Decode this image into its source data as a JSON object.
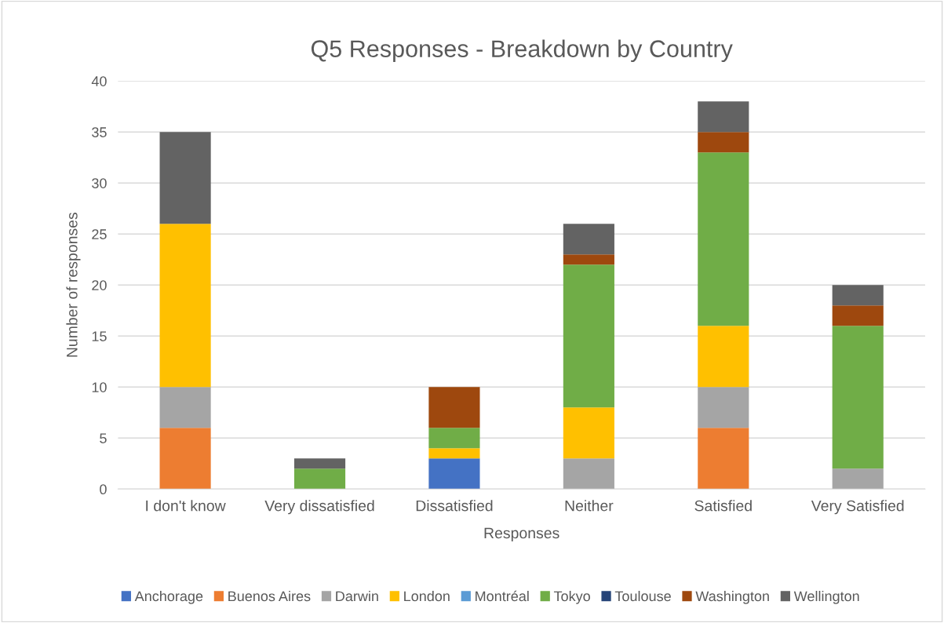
{
  "chart_data": {
    "type": "bar",
    "stacked": true,
    "title": "Q5 Responses - Breakdown by Country",
    "xlabel": "Responses",
    "ylabel": "Number of responses",
    "categories": [
      "I don't know",
      "Very dissatisfied",
      "Dissatisfied",
      "Neither",
      "Satisfied",
      "Very Satisfied"
    ],
    "series": [
      {
        "name": "Anchorage",
        "color": "#4472c4",
        "values": [
          0,
          0,
          3,
          0,
          0,
          0
        ]
      },
      {
        "name": "Buenos Aires",
        "color": "#ed7d31",
        "values": [
          6,
          0,
          0,
          0,
          6,
          0
        ]
      },
      {
        "name": "Darwin",
        "color": "#a5a5a5",
        "values": [
          4,
          0,
          0,
          3,
          4,
          2
        ]
      },
      {
        "name": "London",
        "color": "#ffc000",
        "values": [
          16,
          0,
          1,
          5,
          6,
          0
        ]
      },
      {
        "name": "Montréal",
        "color": "#5b9bd5",
        "values": [
          0,
          0,
          0,
          0,
          0,
          0
        ]
      },
      {
        "name": "Tokyo",
        "color": "#70ad47",
        "values": [
          0,
          2,
          2,
          14,
          17,
          14
        ]
      },
      {
        "name": "Toulouse",
        "color": "#264478",
        "values": [
          0,
          0,
          0,
          0,
          0,
          0
        ]
      },
      {
        "name": "Washington",
        "color": "#9e480e",
        "values": [
          0,
          0,
          4,
          1,
          2,
          2
        ]
      },
      {
        "name": "Wellington",
        "color": "#636363",
        "values": [
          9,
          1,
          0,
          3,
          3,
          2
        ]
      }
    ],
    "ylim": [
      0,
      40
    ],
    "yticks": [
      0,
      5,
      10,
      15,
      20,
      25,
      30,
      35,
      40
    ],
    "grid": "y",
    "legend": "bottom"
  }
}
